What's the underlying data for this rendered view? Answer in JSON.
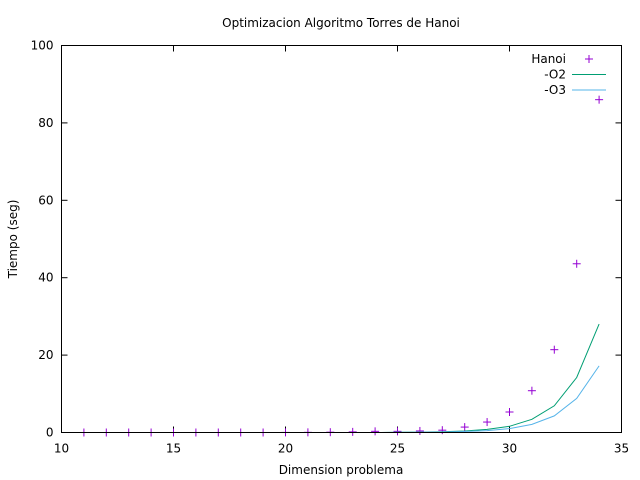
{
  "chart_data": {
    "type": "scatter",
    "title": "Optimizacion Algoritmo Torres de Hanoi",
    "xlabel": "Dimension problema",
    "ylabel": "Tiempo (seg)",
    "xlim": [
      10,
      35
    ],
    "ylim": [
      0,
      100
    ],
    "xticks": [
      10,
      15,
      20,
      25,
      30,
      35
    ],
    "yticks": [
      0,
      20,
      40,
      60,
      80,
      100
    ],
    "grid": false,
    "legend_position": "top-right",
    "series": [
      {
        "name": "Hanoi",
        "style": "points",
        "marker": "plus",
        "color": "#9400d3",
        "x": [
          11,
          12,
          13,
          14,
          15,
          16,
          17,
          18,
          19,
          20,
          21,
          22,
          23,
          24,
          25,
          26,
          27,
          28,
          29,
          30,
          31,
          32,
          33,
          34
        ],
        "y": [
          0,
          0,
          0,
          0,
          0,
          0,
          0,
          0,
          0,
          0.02,
          0.04,
          0.08,
          0.16,
          0.3,
          0.3,
          0.4,
          0.6,
          1.4,
          2.7,
          5.3,
          10.8,
          21.4,
          43.6,
          86
        ]
      },
      {
        "name": "-O2",
        "style": "line",
        "color": "#009e73",
        "x": [
          11,
          12,
          13,
          14,
          15,
          16,
          17,
          18,
          19,
          20,
          21,
          22,
          23,
          24,
          25,
          26,
          27,
          28,
          29,
          30,
          31,
          32,
          33,
          34
        ],
        "y": [
          0,
          0,
          0,
          0,
          0,
          0,
          0,
          0,
          0,
          0,
          0,
          0,
          0,
          0,
          0.05,
          0.1,
          0.2,
          0.4,
          0.8,
          1.6,
          3.4,
          6.9,
          14.2,
          28
        ]
      },
      {
        "name": "-O3",
        "style": "line",
        "color": "#56b4e9",
        "x": [
          11,
          12,
          13,
          14,
          15,
          16,
          17,
          18,
          19,
          20,
          21,
          22,
          23,
          24,
          25,
          26,
          27,
          28,
          29,
          30,
          31,
          32,
          33,
          34
        ],
        "y": [
          0,
          0,
          0,
          0,
          0,
          0,
          0,
          0,
          0,
          0,
          0,
          0,
          0,
          0,
          0.03,
          0.06,
          0.12,
          0.25,
          0.5,
          1.0,
          2.1,
          4.3,
          8.8,
          17.2
        ]
      }
    ]
  }
}
